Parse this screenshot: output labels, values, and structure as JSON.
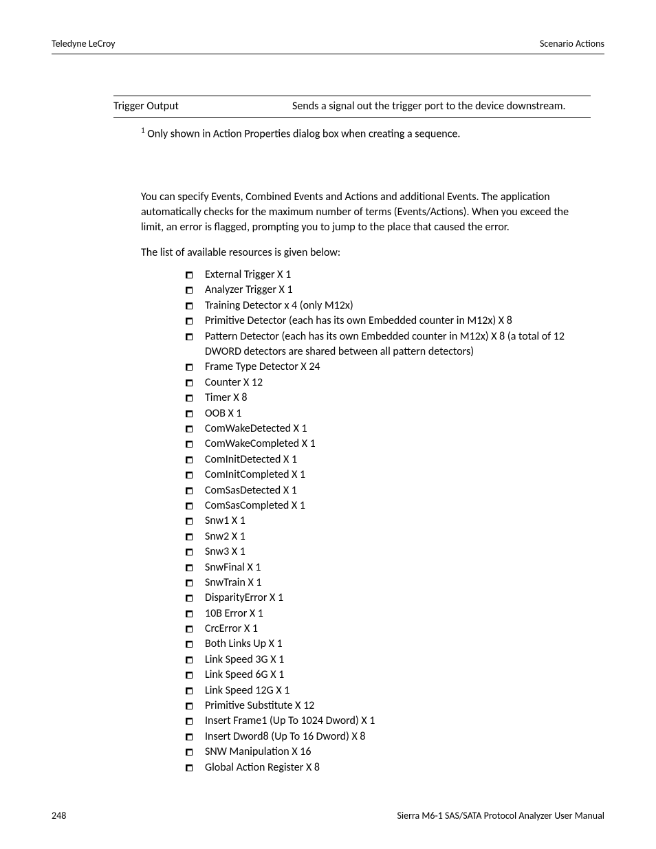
{
  "header": {
    "left": "Teledyne LeCroy",
    "right": "Scenario Actions"
  },
  "table": {
    "row": {
      "name": "Trigger Output",
      "description": "Sends a signal out the trigger port to the device downstream."
    }
  },
  "footnote": {
    "marker": "1",
    "text": " Only shown in Action Properties dialog box when creating a sequence."
  },
  "body": {
    "para1": "You can specify Events, Combined Events and Actions and additional Events. The application automatically checks for the maximum number of terms (Events/Actions). When you exceed the limit, an error is flagged, prompting you to jump to the place that caused the error.",
    "para2": "The list of available resources is given below:"
  },
  "resources": [
    "External Trigger X 1",
    "Analyzer Trigger X 1",
    "Training Detector x 4 (only M12x)",
    "Primitive Detector (each has its own Embedded counter in M12x) X 8",
    "Pattern Detector (each has its own Embedded counter in M12x) X 8 (a total of 12 DWORD detectors are shared between all pattern detectors)",
    "Frame Type Detector X 24",
    "Counter X 12",
    "Timer X 8",
    "OOB X 1",
    "ComWakeDetected X 1",
    "ComWakeCompleted X 1",
    "ComInitDetected X 1",
    "ComInitCompleted X 1",
    "ComSasDetected X 1",
    "ComSasCompleted X 1",
    "Snw1 X 1",
    "Snw2 X 1",
    "Snw3 X 1",
    "SnwFinal X 1",
    "SnwTrain X 1",
    "DisparityError X 1",
    "10B Error X 1",
    "CrcError X 1",
    "Both Links Up X 1",
    "Link Speed 3G X 1",
    "Link Speed 6G  X 1",
    "Link Speed 12G X 1",
    "Primitive Substitute X 12",
    "Insert Frame1 (Up To 1024 Dword) X 1",
    "Insert Dword8 (Up To 16 Dword) X 8",
    "SNW Manipulation X 16",
    "Global Action Register X 8"
  ],
  "footer": {
    "page": "248",
    "title": "Sierra M6-1 SAS/SATA Protocol Analyzer User Manual"
  }
}
